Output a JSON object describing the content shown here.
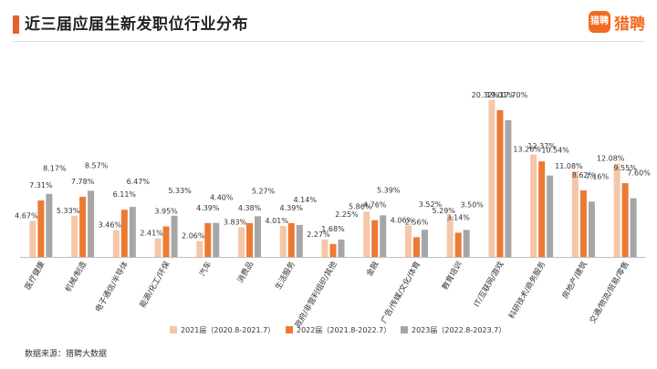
{
  "header": {
    "title": "近三届应届生新发职位行业分布",
    "logo_mark": "猎聘",
    "logo_text": "猎聘"
  },
  "footer": {
    "source": "数据来源：猎聘大数据"
  },
  "colors": {
    "s2021": "#f5c6a8",
    "s2022": "#ec7a32",
    "s2023": "#a6a6a6",
    "accent": "#e8602c"
  },
  "chart_data": {
    "type": "bar",
    "title": "近三届应届生新发职位行业分布",
    "categories": [
      "医疗健康",
      "机械/制造",
      "电子通信/半导体",
      "能源/化工/环保",
      "汽车",
      "消费品",
      "生活服务",
      "政府/非营利组织/其他",
      "金融",
      "广告/传媒/文化/体育",
      "教育培训",
      "IT/互联网/游戏",
      "科研技术/商务服务",
      "房地产/建筑",
      "交通/物流/贸易/零售"
    ],
    "series": [
      {
        "name": "2021届（2020.8-2021.7）",
        "color": "#f5c6a8",
        "values": [
          4.67,
          5.33,
          3.46,
          2.41,
          2.06,
          3.83,
          4.01,
          2.27,
          5.86,
          4.06,
          5.29,
          20.32,
          13.26,
          11.08,
          12.08
        ],
        "labels": [
          "4.67%",
          "5.33%",
          "3.46%",
          "2.41%",
          "2.06%",
          "3.83%",
          "4.01%",
          "2.27%",
          "5.86%",
          "4.06%",
          "5.29%",
          "20.32%",
          "13.26%",
          "11.08%",
          "12.08%"
        ]
      },
      {
        "name": "2022届（2021.8-2022.7）",
        "color": "#ec7a32",
        "values": [
          7.31,
          7.78,
          6.11,
          3.95,
          4.39,
          4.38,
          4.39,
          1.68,
          4.76,
          2.56,
          3.14,
          19.01,
          12.37,
          8.62,
          9.55
        ],
        "labels": [
          "7.31%",
          "7.78%",
          "6.11%",
          "3.95%",
          "4.39%",
          "4.38%",
          "4.39%",
          "1.68%",
          "4.76%",
          "2.56%",
          "3.14%",
          "19.01%",
          "12.37%",
          "8.62%",
          "9.55%"
        ]
      },
      {
        "name": "2023届（2022.8-2023.7）",
        "color": "#a6a6a6",
        "values": [
          8.17,
          8.57,
          6.47,
          5.33,
          4.4,
          5.27,
          4.14,
          2.25,
          5.39,
          3.52,
          3.5,
          17.7,
          10.54,
          7.16,
          7.6
        ],
        "labels": [
          "8.17%",
          "8.57%",
          "6.47%",
          "5.33%",
          "4.40%",
          "5.27%",
          "4.14%",
          "2.25%",
          "5.39%",
          "3.52%",
          "3.50%",
          "17.70%",
          "10.54%",
          "7.16%",
          "7.60%"
        ]
      }
    ],
    "ylim": [
      0,
      21
    ],
    "grid": false,
    "legend": "bottom-center"
  }
}
